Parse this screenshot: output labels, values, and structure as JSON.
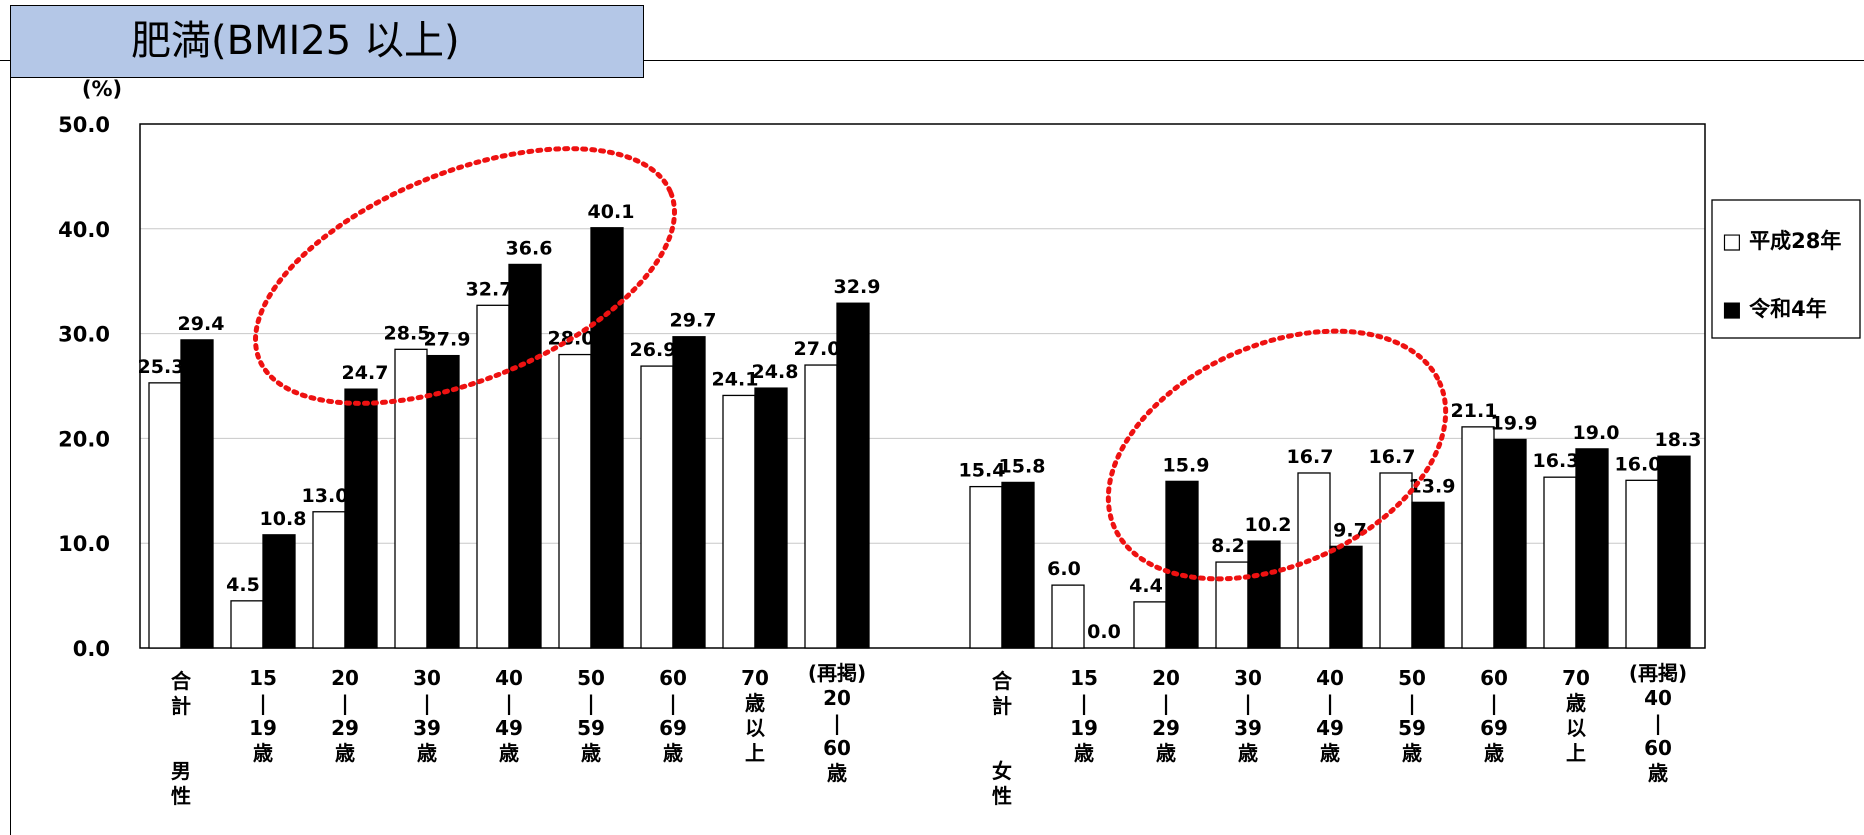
{
  "page": {
    "title": "肥満(BMI25 以上)"
  },
  "chart_data": {
    "type": "bar",
    "title": "肥満(BMI25 以上)",
    "ylabel": "(%)",
    "xlabel": "",
    "ylim": [
      0,
      50
    ],
    "yticks": [
      "0.0",
      "10.0",
      "20.0",
      "30.0",
      "40.0",
      "50.0"
    ],
    "grid": true,
    "legend_placement": "right",
    "colors": {
      "平成28年": "#ffffff",
      "令和4年": "#000000"
    },
    "legend": [
      "□ 平成28年",
      "■ 令和4年"
    ],
    "groups": [
      {
        "label_lines": [
          "男",
          "性"
        ],
        "categories": [
          {
            "lines": [
              "合",
              "計"
            ],
            "values": [
              25.3,
              29.4
            ],
            "labels": [
              "25.3",
              "29.4"
            ]
          },
          {
            "lines": [
              "15",
              "|",
              "19",
              "歳"
            ],
            "values": [
              4.5,
              10.8
            ],
            "labels": [
              "4.5",
              "10.8"
            ]
          },
          {
            "lines": [
              "20",
              "|",
              "29",
              "歳"
            ],
            "values": [
              13.0,
              24.7
            ],
            "labels": [
              "13.0",
              "24.7"
            ]
          },
          {
            "lines": [
              "30",
              "|",
              "39",
              "歳"
            ],
            "values": [
              28.5,
              27.9
            ],
            "labels": [
              "28.5",
              "27.9"
            ]
          },
          {
            "lines": [
              "40",
              "|",
              "49",
              "歳"
            ],
            "values": [
              32.7,
              36.6
            ],
            "labels": [
              "32.7",
              "36.6"
            ]
          },
          {
            "lines": [
              "50",
              "|",
              "59",
              "歳"
            ],
            "values": [
              28.0,
              40.1
            ],
            "labels": [
              "28.0",
              "40.1"
            ]
          },
          {
            "lines": [
              "60",
              "|",
              "69",
              "歳"
            ],
            "values": [
              26.9,
              29.7
            ],
            "labels": [
              "26.9",
              "29.7"
            ]
          },
          {
            "lines": [
              "70",
              "歳",
              "以",
              "上"
            ],
            "values": [
              24.1,
              24.8
            ],
            "labels": [
              "24.1",
              "24.8"
            ]
          },
          {
            "lines": [
              "(再掲)",
              "20",
              "|",
              "60",
              "歳"
            ],
            "values": [
              27.0,
              32.9
            ],
            "labels": [
              "27.0",
              "32.9"
            ]
          }
        ]
      },
      {
        "label_lines": [
          "女",
          "性"
        ],
        "categories": [
          {
            "lines": [
              "合",
              "計"
            ],
            "values": [
              15.4,
              15.8
            ],
            "labels": [
              "15.4",
              "15.8"
            ]
          },
          {
            "lines": [
              "15",
              "|",
              "19",
              "歳"
            ],
            "values": [
              6.0,
              0.0
            ],
            "labels": [
              "6.0",
              "0.0"
            ]
          },
          {
            "lines": [
              "20",
              "|",
              "29",
              "歳"
            ],
            "values": [
              4.4,
              15.9
            ],
            "labels": [
              "4.4",
              "15.9"
            ]
          },
          {
            "lines": [
              "30",
              "|",
              "39",
              "歳"
            ],
            "values": [
              8.2,
              10.2
            ],
            "labels": [
              "8.2",
              "10.2"
            ]
          },
          {
            "lines": [
              "40",
              "|",
              "49",
              "歳"
            ],
            "values": [
              16.7,
              9.7
            ],
            "labels": [
              "16.7",
              "9.7"
            ]
          },
          {
            "lines": [
              "50",
              "|",
              "59",
              "歳"
            ],
            "values": [
              16.7,
              13.9
            ],
            "labels": [
              "16.7",
              "13.9"
            ]
          },
          {
            "lines": [
              "60",
              "|",
              "69",
              "歳"
            ],
            "values": [
              21.1,
              19.9
            ],
            "labels": [
              "21.1",
              "19.9"
            ]
          },
          {
            "lines": [
              "70",
              "歳",
              "以",
              "上"
            ],
            "values": [
              16.3,
              19.0
            ],
            "labels": [
              "16.3",
              "19.0"
            ]
          },
          {
            "lines": [
              "(再掲)",
              "40",
              "|",
              "60",
              "歳"
            ],
            "values": [
              16.0,
              18.3
            ],
            "labels": [
              "16.0",
              "18.3"
            ]
          }
        ]
      }
    ]
  }
}
